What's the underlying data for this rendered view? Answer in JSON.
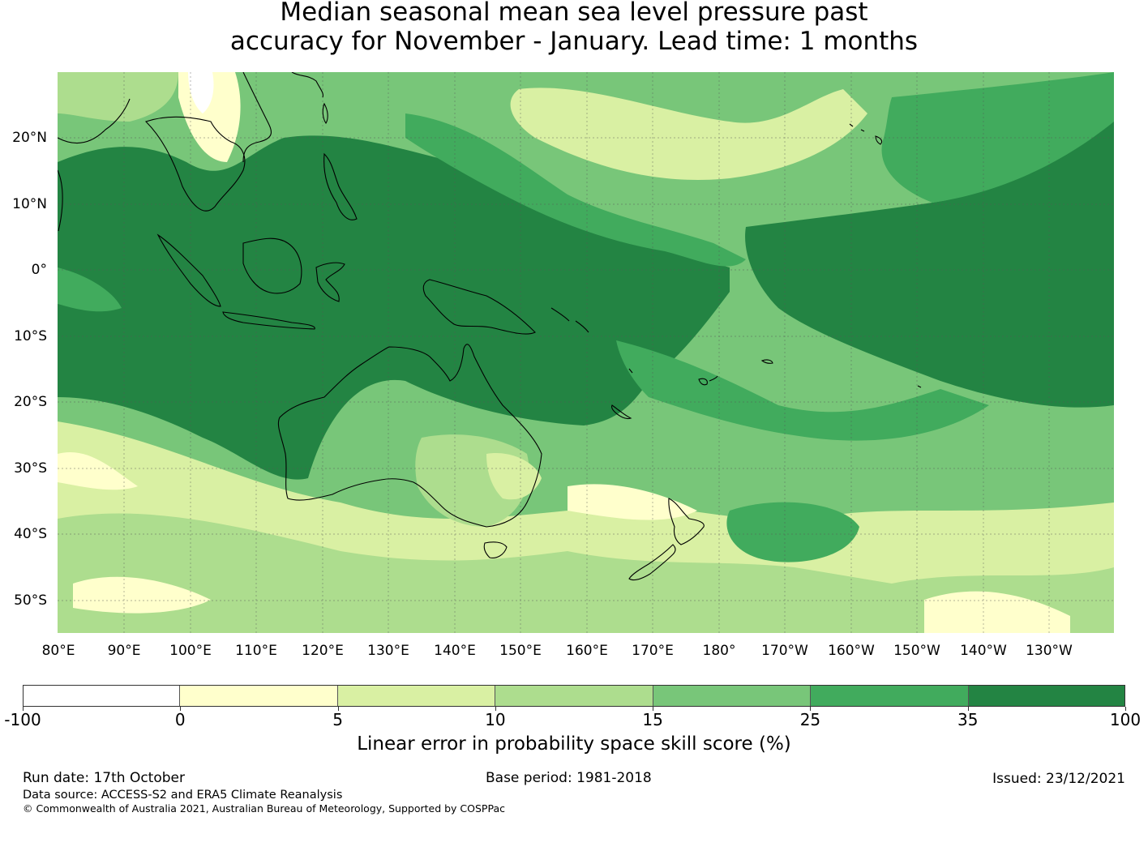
{
  "title": {
    "line1": "Median seasonal mean sea level pressure past",
    "line2": "accuracy for November - January. Lead time: 1 months"
  },
  "map": {
    "lat_labels": [
      "20°N",
      "10°N",
      "0°",
      "10°S",
      "20°S",
      "30°S",
      "40°S",
      "50°S"
    ],
    "lon_labels": [
      "80°E",
      "90°E",
      "100°E",
      "110°E",
      "120°E",
      "130°E",
      "140°E",
      "150°E",
      "160°E",
      "170°E",
      "180°",
      "170°W",
      "160°W",
      "150°W",
      "140°W",
      "130°W"
    ],
    "coastline_color": "#000000",
    "gridline_color": "#555555"
  },
  "colorbar": {
    "label": "Linear error in probability space skill score (%)",
    "ticks": [
      "-100",
      "0",
      "5",
      "10",
      "15",
      "25",
      "35",
      "100"
    ],
    "colors": [
      "#ffffff",
      "#ffffcc",
      "#d9f0a3",
      "#addd8e",
      "#78c679",
      "#41ab5d",
      "#238443"
    ]
  },
  "footer": {
    "run_date": "Run date: 17th October",
    "base_period": "Base period: 1981-2018",
    "issued": "Issued: 23/12/2021",
    "data_source": "Data source: ACCESS-S2 and ERA5 Climate Reanalysis",
    "copyright": "© Commonwealth of Australia 2021, Australian Bureau of Meteorology, Supported by COSPPac"
  }
}
